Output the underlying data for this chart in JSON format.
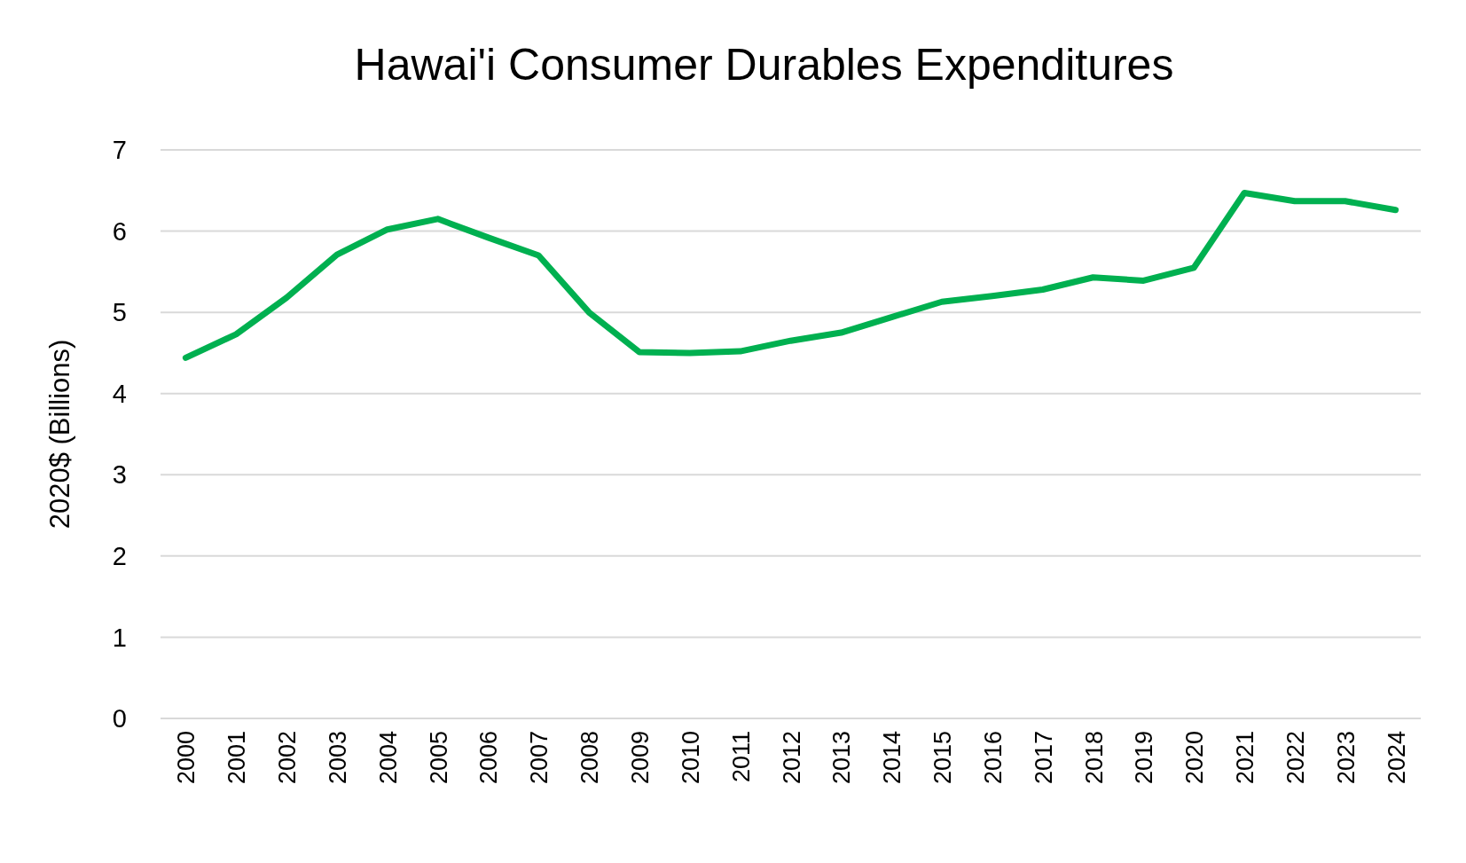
{
  "chart_data": {
    "type": "line",
    "title": "Hawai'i Consumer Durables Expenditures",
    "ylabel": "2020$ (Billions)",
    "categories": [
      "2000",
      "2001",
      "2002",
      "2003",
      "2004",
      "2005",
      "2006",
      "2007",
      "2008",
      "2009",
      "2010",
      "2011",
      "2012",
      "2013",
      "2014",
      "2015",
      "2016",
      "2017",
      "2018",
      "2019",
      "2020",
      "2021",
      "2022",
      "2023",
      "2024"
    ],
    "series": [
      {
        "color": "#00b050",
        "values": [
          4.44,
          4.73,
          5.18,
          5.71,
          6.02,
          6.15,
          5.92,
          5.7,
          5.0,
          4.51,
          4.5,
          4.52,
          4.65,
          4.75,
          4.94,
          5.13,
          5.2,
          5.28,
          5.43,
          5.39,
          5.55,
          6.47,
          6.37,
          6.37,
          6.26
        ]
      }
    ],
    "ylim": [
      0,
      7
    ],
    "yticks": [
      0,
      1,
      2,
      3,
      4,
      5,
      6,
      7
    ],
    "grid": "y",
    "marker": "none",
    "line_style": "solid"
  }
}
